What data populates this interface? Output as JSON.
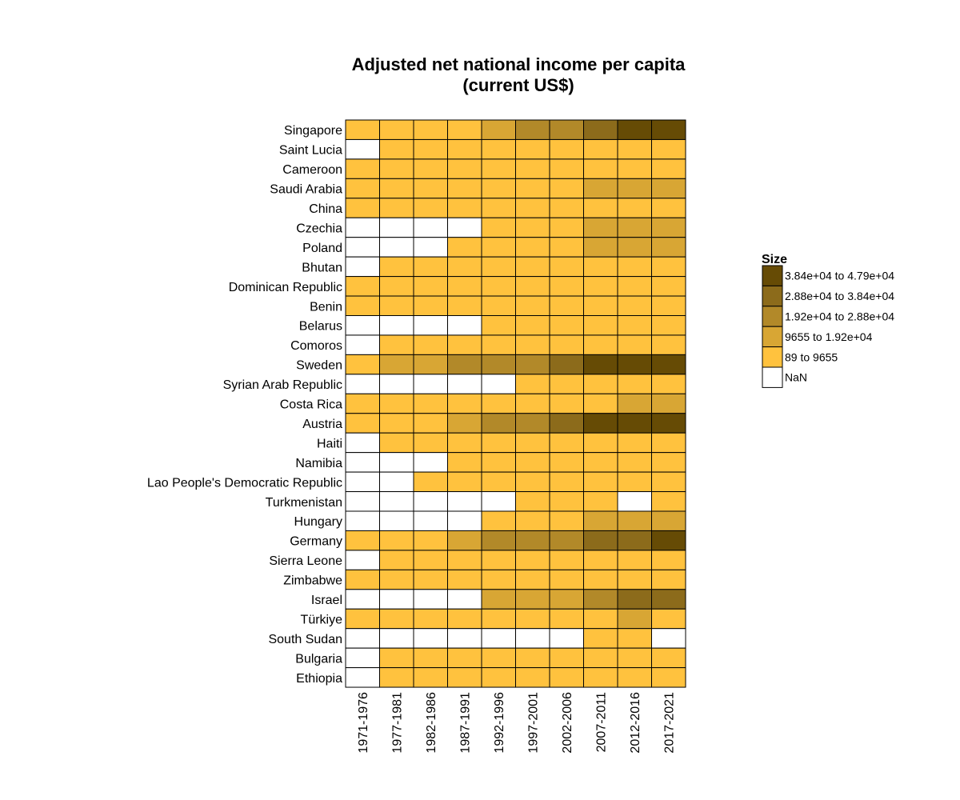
{
  "chart_data": {
    "type": "heatmap",
    "title_lines": [
      "Adjusted net national income per capita",
      "(current US$)"
    ],
    "x_categories": [
      "1971-1976",
      "1977-1981",
      "1982-1986",
      "1987-1991",
      "1992-1996",
      "1997-2001",
      "2002-2006",
      "2007-2011",
      "2012-2016",
      "2017-2021"
    ],
    "y_categories": [
      "Singapore",
      "Saint Lucia",
      "Cameroon",
      "Saudi Arabia",
      "China",
      "Czechia",
      "Poland",
      "Bhutan",
      "Dominican Republic",
      "Benin",
      "Belarus",
      "Comoros",
      "Sweden",
      "Syrian Arab Republic",
      "Costa Rica",
      "Austria",
      "Haiti",
      "Namibia",
      "Lao People's Democratic Republic",
      "Turkmenistan",
      "Hungary",
      "Germany",
      "Sierra Leone",
      "Zimbabwe",
      "Israel",
      "Türkiye",
      "South Sudan",
      "Bulgaria",
      "Ethiopia"
    ],
    "bin_index_note": "",
    "cells": [
      [
        0,
        0,
        0,
        0,
        1,
        2,
        2,
        3,
        4,
        4
      ],
      [
        -1,
        0,
        0,
        0,
        0,
        0,
        0,
        0,
        0,
        0
      ],
      [
        0,
        0,
        0,
        0,
        0,
        0,
        0,
        0,
        0,
        0
      ],
      [
        0,
        0,
        0,
        0,
        0,
        0,
        0,
        1,
        1,
        1
      ],
      [
        0,
        0,
        0,
        0,
        0,
        0,
        0,
        0,
        0,
        0
      ],
      [
        -1,
        -1,
        -1,
        -1,
        0,
        0,
        0,
        1,
        1,
        1
      ],
      [
        -1,
        -1,
        -1,
        0,
        0,
        0,
        0,
        1,
        1,
        1
      ],
      [
        -1,
        0,
        0,
        0,
        0,
        0,
        0,
        0,
        0,
        0
      ],
      [
        0,
        0,
        0,
        0,
        0,
        0,
        0,
        0,
        0,
        0
      ],
      [
        0,
        0,
        0,
        0,
        0,
        0,
        0,
        0,
        0,
        0
      ],
      [
        -1,
        -1,
        -1,
        -1,
        0,
        0,
        0,
        0,
        0,
        0
      ],
      [
        -1,
        0,
        0,
        0,
        0,
        0,
        0,
        0,
        0,
        0
      ],
      [
        0,
        1,
        1,
        2,
        2,
        2,
        3,
        4,
        4,
        4
      ],
      [
        -1,
        -1,
        -1,
        -1,
        -1,
        0,
        0,
        0,
        0,
        0
      ],
      [
        0,
        0,
        0,
        0,
        0,
        0,
        0,
        0,
        1,
        1
      ],
      [
        0,
        0,
        0,
        1,
        2,
        2,
        3,
        4,
        4,
        4
      ],
      [
        -1,
        0,
        0,
        0,
        0,
        0,
        0,
        0,
        0,
        0
      ],
      [
        -1,
        -1,
        -1,
        0,
        0,
        0,
        0,
        0,
        0,
        0
      ],
      [
        -1,
        -1,
        0,
        0,
        0,
        0,
        0,
        0,
        0,
        0
      ],
      [
        -1,
        -1,
        -1,
        -1,
        -1,
        0,
        0,
        0,
        -1,
        0
      ],
      [
        -1,
        -1,
        -1,
        -1,
        0,
        0,
        0,
        1,
        1,
        1
      ],
      [
        0,
        0,
        0,
        1,
        2,
        2,
        2,
        3,
        3,
        4
      ],
      [
        -1,
        0,
        0,
        0,
        0,
        0,
        0,
        0,
        0,
        0
      ],
      [
        0,
        0,
        0,
        0,
        0,
        0,
        0,
        0,
        0,
        0
      ],
      [
        -1,
        -1,
        -1,
        -1,
        1,
        1,
        1,
        2,
        3,
        3
      ],
      [
        0,
        0,
        0,
        0,
        0,
        0,
        0,
        0,
        1,
        0
      ],
      [
        -1,
        -1,
        -1,
        -1,
        -1,
        -1,
        -1,
        0,
        0,
        -1
      ],
      [
        -1,
        0,
        0,
        0,
        0,
        0,
        0,
        0,
        0,
        0
      ],
      [
        -1,
        0,
        0,
        0,
        0,
        0,
        0,
        0,
        0,
        0
      ]
    ],
    "legend": {
      "title": "Size",
      "bins": [
        {
          "label": "89 to 9655",
          "color": "#ffc23e"
        },
        {
          "label": "9655 to 1.92e+04",
          "color": "#d8a634"
        },
        {
          "label": "1.92e+04 to 2.88e+04",
          "color": "#b28929"
        },
        {
          "label": "2.88e+04 to 3.84e+04",
          "color": "#8c6b1b"
        },
        {
          "label": "3.84e+04 to 4.79e+04",
          "color": "#664b05"
        }
      ],
      "nan": {
        "label": "NaN",
        "color": "#ffffff"
      },
      "placement": "right"
    }
  }
}
